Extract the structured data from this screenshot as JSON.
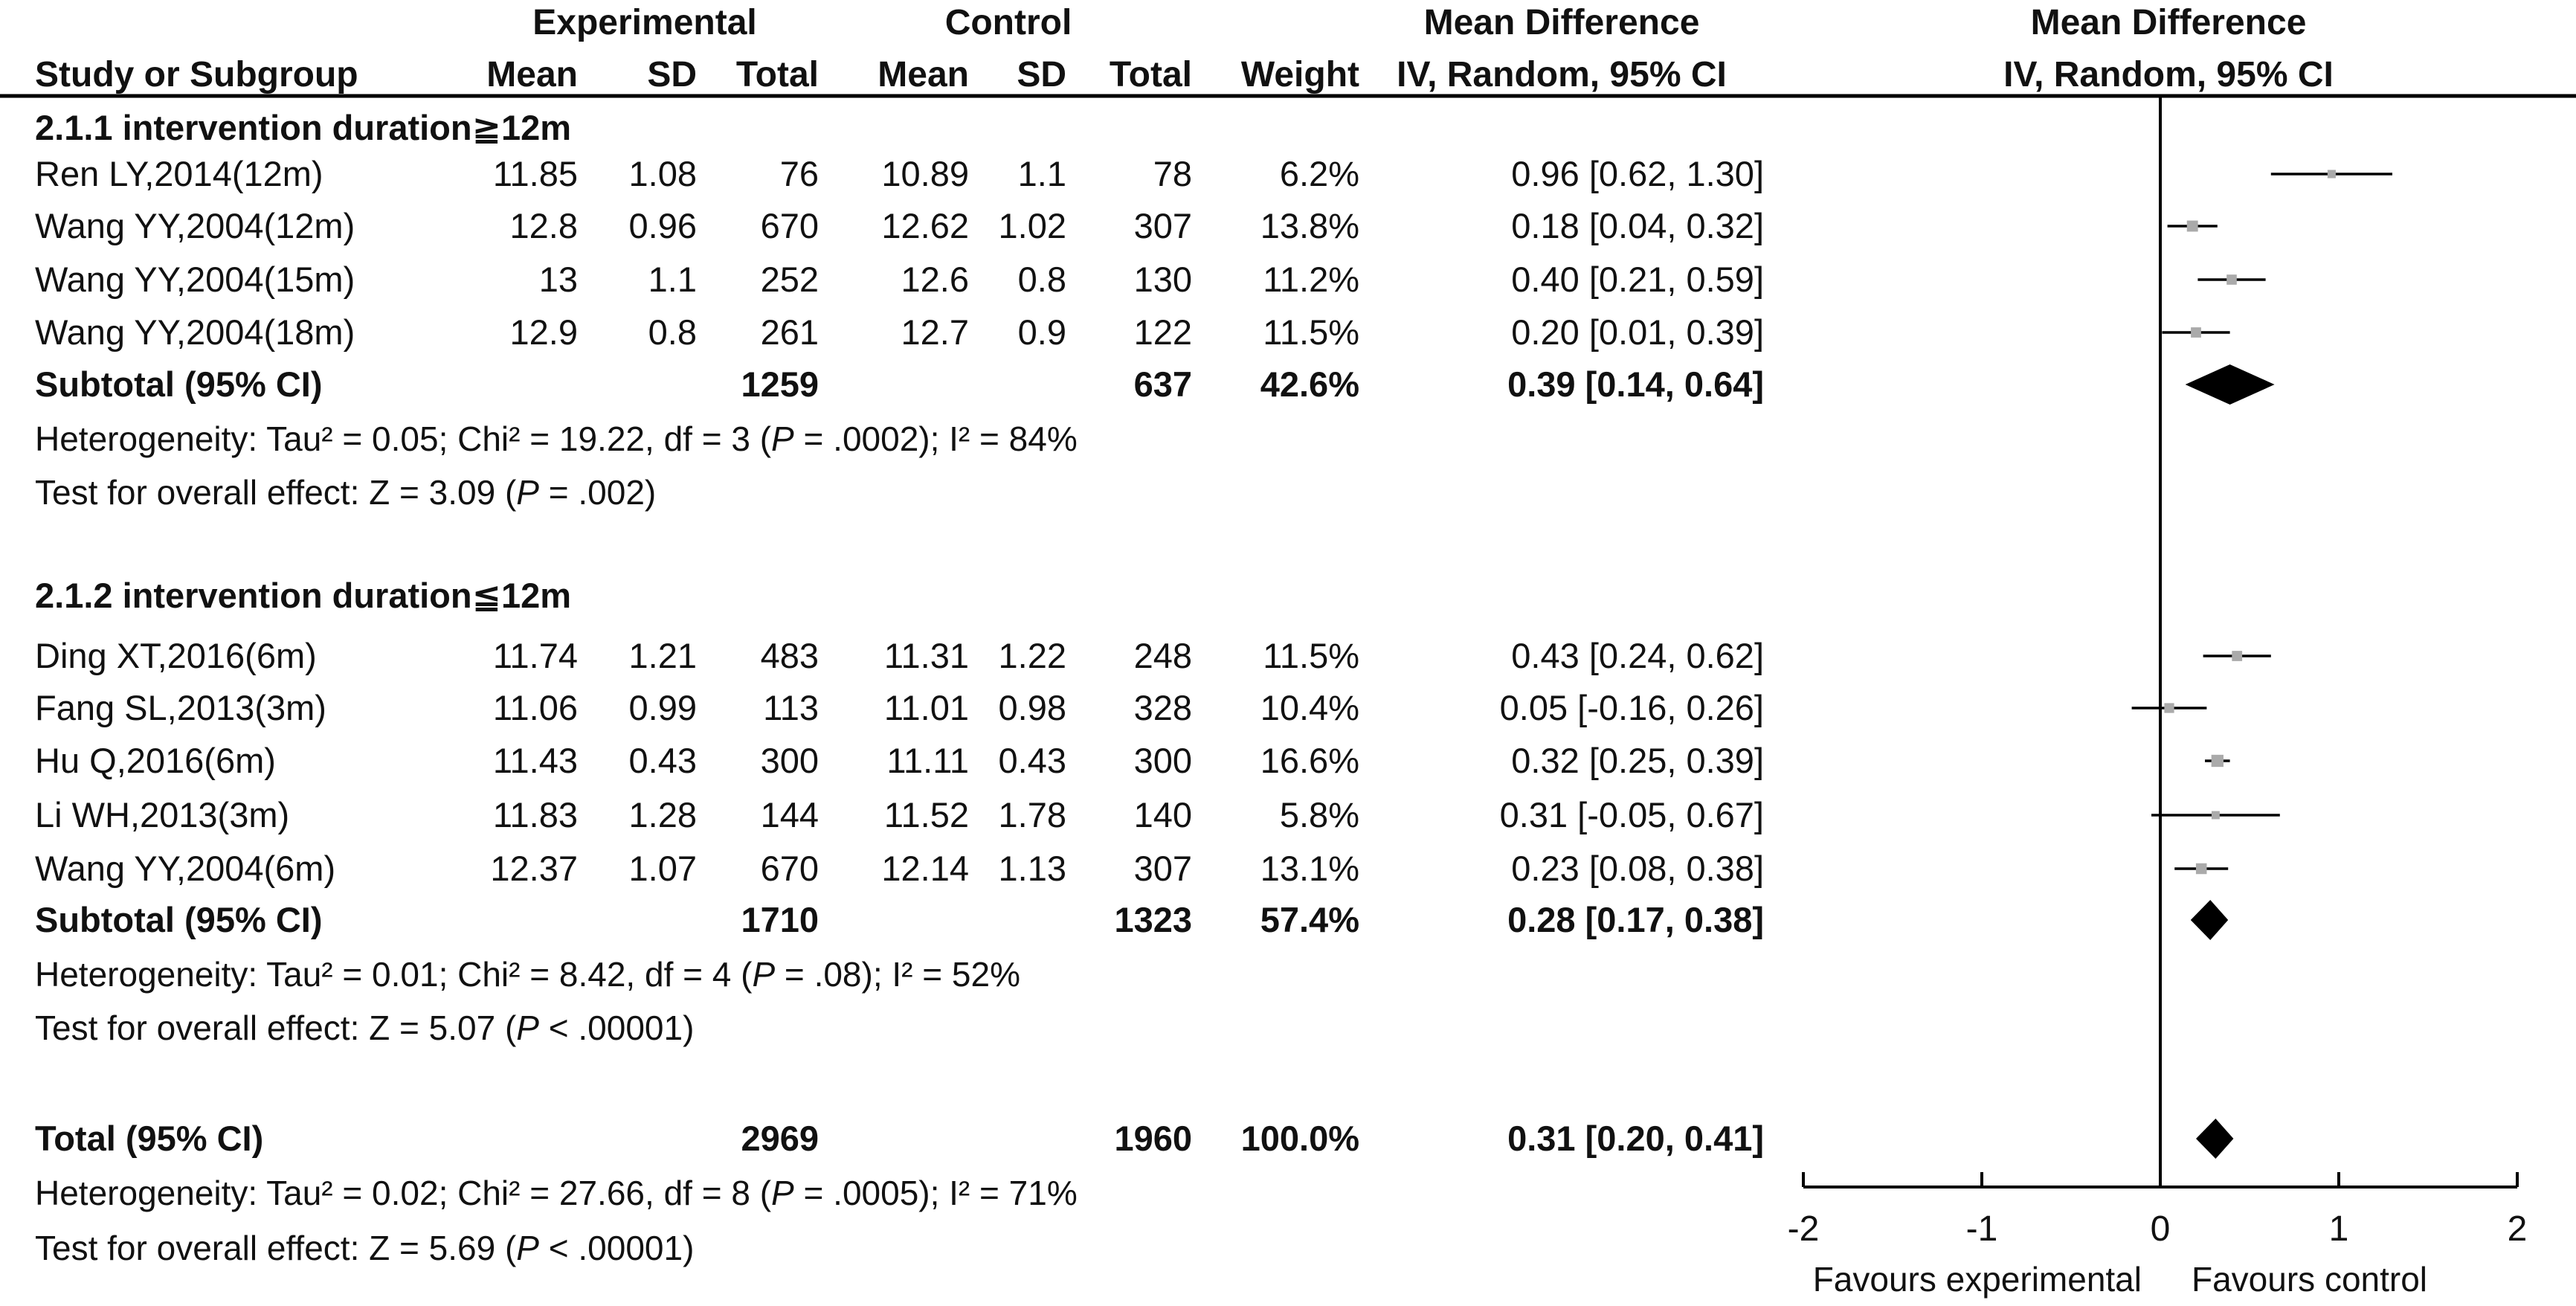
{
  "chart_data": {
    "type": "forest",
    "headers": {
      "group_row": {
        "experimental": "Experimental",
        "control": "Control",
        "md_table": "Mean Difference",
        "md_plot": "Mean Difference"
      },
      "columns": {
        "study": "Study or Subgroup",
        "exp_mean": "Mean",
        "exp_sd": "SD",
        "exp_total": "Total",
        "ctl_mean": "Mean",
        "ctl_sd": "SD",
        "ctl_total": "Total",
        "weight": "Weight",
        "md": "IV, Random, 95% CI",
        "md_plot": "IV, Random, 95% CI"
      }
    },
    "subgroups": [
      {
        "title": "2.1.1 intervention duration≧12m",
        "studies": [
          {
            "study": "Ren LY,2014(12m)",
            "exp_mean": "11.85",
            "exp_sd": "1.08",
            "exp_total": "76",
            "ctl_mean": "10.89",
            "ctl_sd": "1.1",
            "ctl_total": "78",
            "weight": "6.2%",
            "ci_text": "0.96 [0.62, 1.30]",
            "md": 0.96,
            "lo": 0.62,
            "hi": 1.3,
            "w": 6.2
          },
          {
            "study": "Wang YY,2004(12m)",
            "exp_mean": "12.8",
            "exp_sd": "0.96",
            "exp_total": "670",
            "ctl_mean": "12.62",
            "ctl_sd": "1.02",
            "ctl_total": "307",
            "weight": "13.8%",
            "ci_text": "0.18 [0.04, 0.32]",
            "md": 0.18,
            "lo": 0.04,
            "hi": 0.32,
            "w": 13.8
          },
          {
            "study": "Wang YY,2004(15m)",
            "exp_mean": "13",
            "exp_sd": "1.1",
            "exp_total": "252",
            "ctl_mean": "12.6",
            "ctl_sd": "0.8",
            "ctl_total": "130",
            "weight": "11.2%",
            "ci_text": "0.40 [0.21, 0.59]",
            "md": 0.4,
            "lo": 0.21,
            "hi": 0.59,
            "w": 11.2
          },
          {
            "study": "Wang YY,2004(18m)",
            "exp_mean": "12.9",
            "exp_sd": "0.8",
            "exp_total": "261",
            "ctl_mean": "12.7",
            "ctl_sd": "0.9",
            "ctl_total": "122",
            "weight": "11.5%",
            "ci_text": "0.20 [0.01, 0.39]",
            "md": 0.2,
            "lo": 0.01,
            "hi": 0.39,
            "w": 11.5
          }
        ],
        "subtotal": {
          "label": "Subtotal (95% CI)",
          "exp_total": "1259",
          "ctl_total": "637",
          "weight": "42.6%",
          "ci_text": "0.39 [0.14, 0.64]",
          "md": 0.39,
          "lo": 0.14,
          "hi": 0.64
        },
        "heterogeneity": {
          "pre": "Heterogeneity: Tau² = 0.05; Chi² = 19.22, df = 3 (",
          "p": "P",
          "post": " = .0002); I² = 84%"
        },
        "overall": {
          "pre": "Test for overall effect: Z = 3.09 (",
          "p": "P",
          "post": " = .002)"
        }
      },
      {
        "title": "2.1.2 intervention duration≦12m",
        "studies": [
          {
            "study": "Ding XT,2016(6m)",
            "exp_mean": "11.74",
            "exp_sd": "1.21",
            "exp_total": "483",
            "ctl_mean": "11.31",
            "ctl_sd": "1.22",
            "ctl_total": "248",
            "weight": "11.5%",
            "ci_text": "0.43 [0.24, 0.62]",
            "md": 0.43,
            "lo": 0.24,
            "hi": 0.62,
            "w": 11.5
          },
          {
            "study": "Fang SL,2013(3m)",
            "exp_mean": "11.06",
            "exp_sd": "0.99",
            "exp_total": "113",
            "ctl_mean": "11.01",
            "ctl_sd": "0.98",
            "ctl_total": "328",
            "weight": "10.4%",
            "ci_text": "0.05 [-0.16, 0.26]",
            "md": 0.05,
            "lo": -0.16,
            "hi": 0.26,
            "w": 10.4
          },
          {
            "study": "Hu Q,2016(6m)",
            "exp_mean": "11.43",
            "exp_sd": "0.43",
            "exp_total": "300",
            "ctl_mean": "11.11",
            "ctl_sd": "0.43",
            "ctl_total": "300",
            "weight": "16.6%",
            "ci_text": "0.32 [0.25, 0.39]",
            "md": 0.32,
            "lo": 0.25,
            "hi": 0.39,
            "w": 16.6
          },
          {
            "study": "Li WH,2013(3m)",
            "exp_mean": "11.83",
            "exp_sd": "1.28",
            "exp_total": "144",
            "ctl_mean": "11.52",
            "ctl_sd": "1.78",
            "ctl_total": "140",
            "weight": "5.8%",
            "ci_text": "0.31 [-0.05, 0.67]",
            "md": 0.31,
            "lo": -0.05,
            "hi": 0.67,
            "w": 5.8
          },
          {
            "study": "Wang YY,2004(6m)",
            "exp_mean": "12.37",
            "exp_sd": "1.07",
            "exp_total": "670",
            "ctl_mean": "12.14",
            "ctl_sd": "1.13",
            "ctl_total": "307",
            "weight": "13.1%",
            "ci_text": "0.23 [0.08, 0.38]",
            "md": 0.23,
            "lo": 0.08,
            "hi": 0.38,
            "w": 13.1
          }
        ],
        "subtotal": {
          "label": "Subtotal (95% CI)",
          "exp_total": "1710",
          "ctl_total": "1323",
          "weight": "57.4%",
          "ci_text": "0.28 [0.17, 0.38]",
          "md": 0.28,
          "lo": 0.17,
          "hi": 0.38
        },
        "heterogeneity": {
          "pre": "Heterogeneity: Tau² = 0.01; Chi² = 8.42, df = 4 (",
          "p": "P",
          "post": " = .08); I² = 52%"
        },
        "overall": {
          "pre": "Test for overall effect: Z = 5.07 (",
          "p": "P",
          "post": " < .00001)"
        }
      }
    ],
    "total": {
      "label": "Total (95% CI)",
      "exp_total": "2969",
      "ctl_total": "1960",
      "weight": "100.0%",
      "ci_text": "0.31 [0.20, 0.41]",
      "md": 0.31,
      "lo": 0.2,
      "hi": 0.41
    },
    "total_heterogeneity": {
      "pre": "Heterogeneity: Tau² = 0.02; Chi² = 27.66, df = 8 (",
      "p": "P",
      "post": " = .0005); I² = 71%"
    },
    "total_overall": {
      "pre": "Test for overall effect: Z = 5.69 (",
      "p": "P",
      "post": " < .00001)"
    },
    "axis": {
      "xlim": [
        -2,
        2
      ],
      "ticks": [
        -2,
        -1,
        0,
        1,
        2
      ],
      "tick_labels": [
        "-2",
        "-1",
        "0",
        "1",
        "2"
      ],
      "left_label": "Favours experimental",
      "right_label": "Favours control"
    },
    "colors": {
      "text": "#111111",
      "square": "#aaaaaa",
      "diamond": "#000000",
      "line": "#000000"
    }
  }
}
